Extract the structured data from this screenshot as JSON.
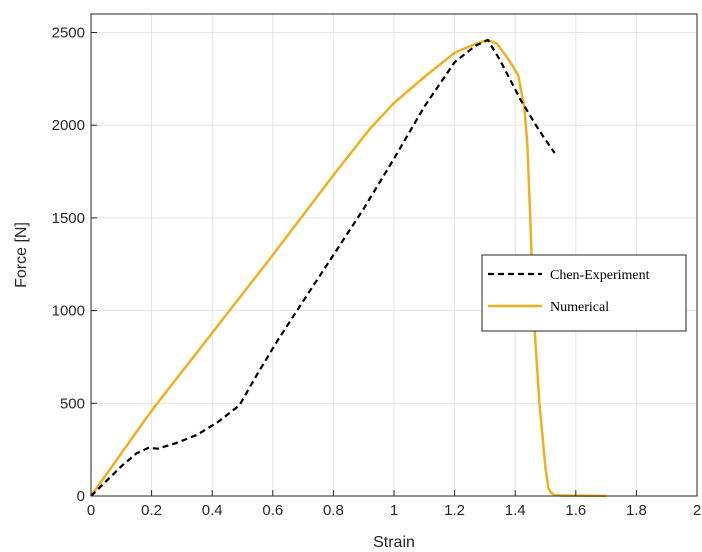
{
  "chart_data": {
    "type": "line",
    "xlabel": "Strain",
    "ylabel": "Force [N]",
    "xlim": [
      0,
      2
    ],
    "ylim": [
      0,
      2600
    ],
    "xticks": [
      0,
      0.2,
      0.4,
      0.6,
      0.8,
      1,
      1.2,
      1.4,
      1.6,
      1.8,
      2
    ],
    "xtick_labels": [
      "0",
      "0.2",
      "0.4",
      "0.6",
      "0.8",
      "1",
      "1.2",
      "1.4",
      "1.6",
      "1.8",
      "2"
    ],
    "yticks": [
      0,
      500,
      1000,
      1500,
      2000,
      2500
    ],
    "ytick_labels": [
      "0",
      "500",
      "1000",
      "1500",
      "2000",
      "2500"
    ],
    "grid": true,
    "legend_position": "right",
    "series": [
      {
        "name": "Chen-Experiment",
        "color": "#000000",
        "style": "dashed",
        "x": [
          0,
          0.05,
          0.1,
          0.15,
          0.19,
          0.22,
          0.28,
          0.35,
          0.42,
          0.49,
          0.55,
          0.62,
          0.7,
          0.8,
          0.9,
          1.0,
          1.1,
          1.2,
          1.27,
          1.31,
          1.35,
          1.42,
          1.48,
          1.53
        ],
        "y": [
          0,
          80,
          160,
          230,
          260,
          255,
          285,
          330,
          400,
          490,
          660,
          850,
          1050,
          1300,
          1550,
          1820,
          2100,
          2340,
          2430,
          2460,
          2350,
          2130,
          1970,
          1850
        ]
      },
      {
        "name": "Numerical",
        "color": "#EDB120",
        "style": "solid",
        "x": [
          0,
          0.2,
          0.4,
          0.6,
          0.8,
          0.92,
          1.0,
          1.1,
          1.2,
          1.27,
          1.31,
          1.34,
          1.38,
          1.41,
          1.43,
          1.44,
          1.45,
          1.46,
          1.48,
          1.5,
          1.51,
          1.52,
          1.53,
          1.56,
          1.6,
          1.7
        ],
        "y": [
          0,
          460,
          880,
          1300,
          1730,
          1980,
          2120,
          2260,
          2390,
          2440,
          2460,
          2440,
          2350,
          2270,
          2100,
          1900,
          1500,
          1000,
          500,
          150,
          40,
          15,
          5,
          2,
          2,
          0
        ]
      }
    ]
  }
}
